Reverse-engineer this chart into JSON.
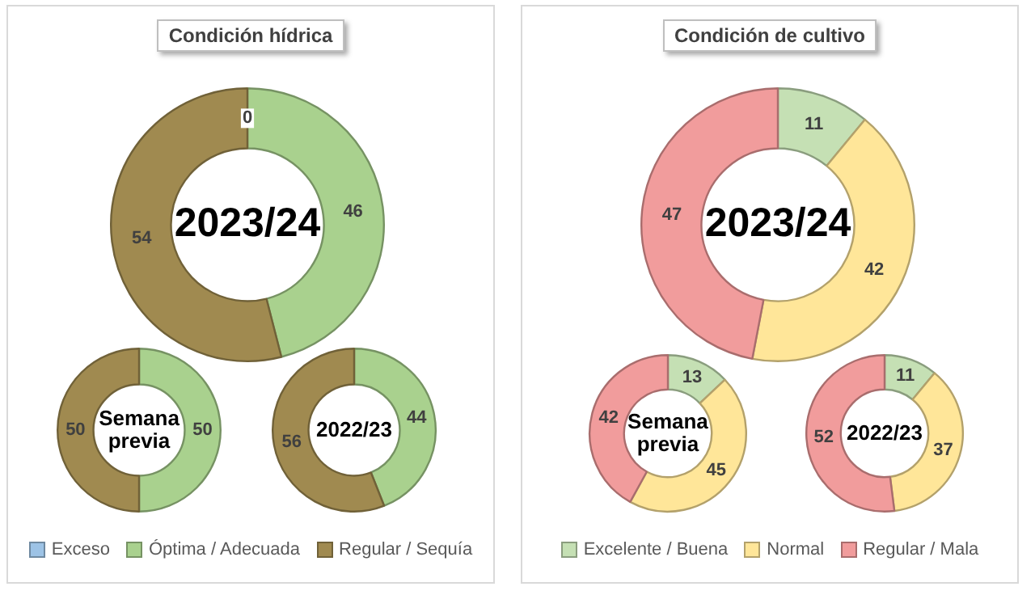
{
  "chart_data": [
    {
      "type": "donut",
      "title": "Condición hídrica",
      "legend": "bottom",
      "categories": [
        "Exceso",
        "Óptima / Adecuada",
        "Regular / Sequía"
      ],
      "colors": [
        "#9dc3e6",
        "#a9d18e",
        "#a08a50"
      ],
      "series": [
        {
          "name": "2023/24",
          "values": [
            0,
            46,
            54
          ],
          "value_labels": [
            "0",
            "46",
            "54"
          ]
        },
        {
          "name": "Semana previa",
          "values": [
            0,
            50,
            50
          ],
          "value_labels": [
            null,
            "50",
            "50"
          ]
        },
        {
          "name": "2022/23",
          "values": [
            0,
            44,
            56
          ],
          "value_labels": [
            null,
            "44",
            "56"
          ]
        }
      ]
    },
    {
      "type": "donut",
      "title": "Condición de cultivo",
      "legend": "bottom",
      "categories": [
        "Excelente / Buena",
        "Normal",
        "Regular / Mala"
      ],
      "colors": [
        "#c5e0b4",
        "#ffe699",
        "#f19c9c"
      ],
      "series": [
        {
          "name": "2023/24",
          "values": [
            11,
            42,
            47
          ],
          "value_labels": [
            "11",
            "42",
            "47"
          ]
        },
        {
          "name": "Semana previa",
          "values": [
            13,
            45,
            42
          ],
          "value_labels": [
            "13",
            "45",
            "42"
          ]
        },
        {
          "name": "2022/23",
          "values": [
            11,
            37,
            52
          ],
          "value_labels": [
            "11",
            "37",
            "52"
          ]
        }
      ]
    }
  ]
}
